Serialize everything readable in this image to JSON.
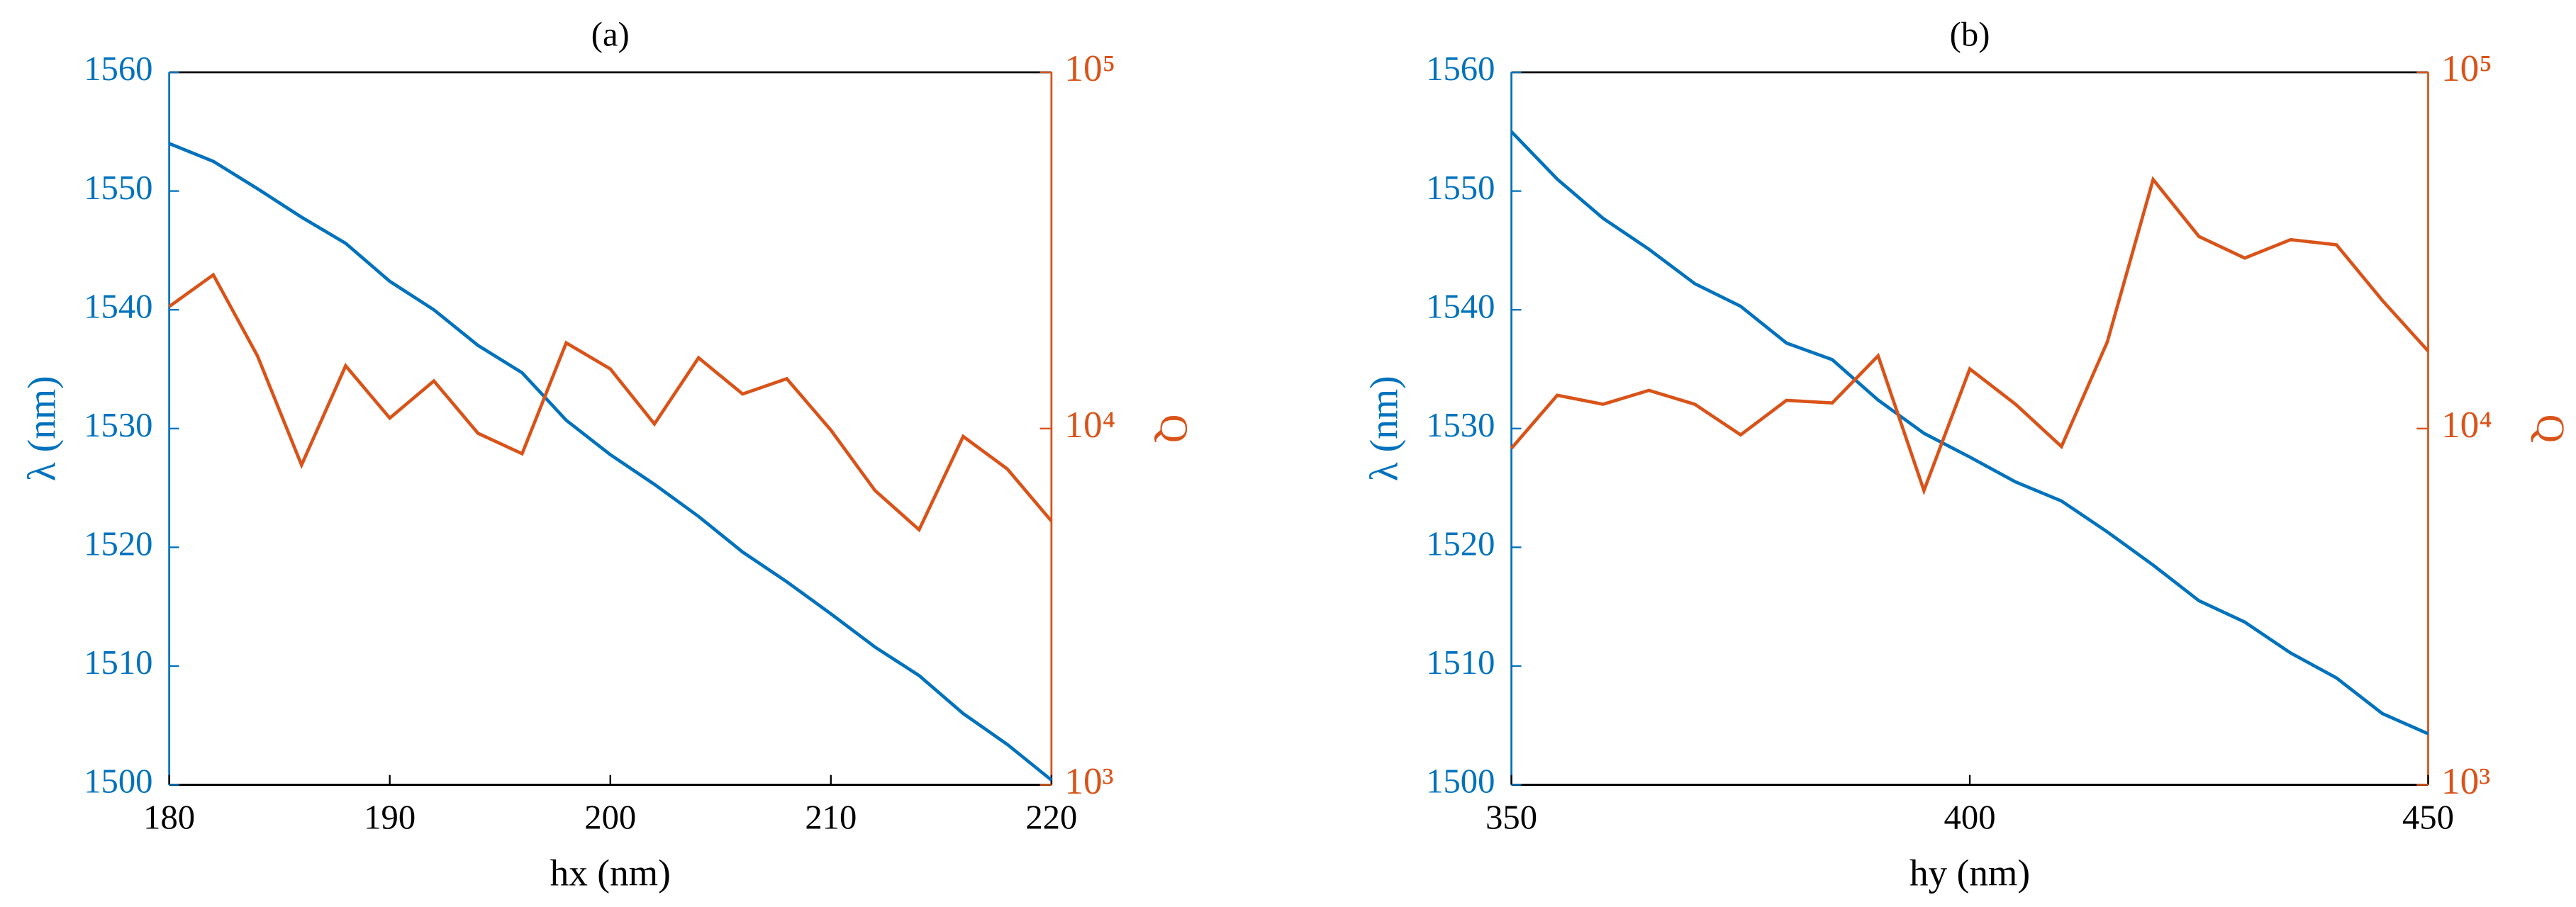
{
  "chart_data": [
    {
      "type": "line",
      "title": "(a)",
      "x_label": "hx (nm)",
      "y_label": "λ (nm)",
      "y2_label": "Q",
      "x": [
        180,
        182,
        184,
        186,
        188,
        190,
        192,
        194,
        196,
        198,
        200,
        202,
        204,
        206,
        208,
        210,
        212,
        214,
        216,
        218,
        220
      ],
      "xlim": [
        180,
        220
      ],
      "xticks": [
        180,
        190,
        200,
        210,
        220
      ],
      "ylim": [
        1500,
        1560
      ],
      "yticks": [
        1500,
        1510,
        1520,
        1530,
        1540,
        1550,
        1560
      ],
      "y2lim": [
        1000,
        100000
      ],
      "y2log": true,
      "y2ticks": [
        {
          "value": 1000,
          "label": "10³"
        },
        {
          "value": 10000,
          "label": "10⁴"
        },
        {
          "value": 100000,
          "label": "10⁵"
        }
      ],
      "series": [
        {
          "color": "#0072BD",
          "values": [
            1554,
            1552.5,
            1550.2,
            1547.8,
            1545.6,
            1542.4,
            1540,
            1537,
            1534.7,
            1530.7,
            1527.8,
            1525.3,
            1522.6,
            1519.6,
            1517.1,
            1514.4,
            1511.6,
            1509.2,
            1506,
            1503.4,
            1500.4
          ]
        },
        {
          "color": "#D95319",
          "axis": "y2",
          "values": [
            22000,
            27000,
            16000,
            7900,
            15000,
            10700,
            13600,
            9700,
            8500,
            17400,
            14700,
            10300,
            15800,
            12500,
            13800,
            9900,
            6700,
            5200,
            9500,
            7700,
            5500
          ]
        }
      ]
    },
    {
      "type": "line",
      "title": "(b)",
      "x_label": "hy (nm)",
      "y_label": "λ (nm)",
      "y2_label": "Q",
      "x": [
        350,
        355,
        360,
        365,
        370,
        375,
        380,
        385,
        390,
        395,
        400,
        405,
        410,
        415,
        420,
        425,
        430,
        435,
        440,
        445,
        450
      ],
      "xlim": [
        350,
        450
      ],
      "xticks": [
        350,
        400,
        450
      ],
      "ylim": [
        1500,
        1560
      ],
      "yticks": [
        1500,
        1510,
        1520,
        1530,
        1540,
        1550,
        1560
      ],
      "y2lim": [
        1000,
        100000
      ],
      "y2log": true,
      "y2ticks": [
        {
          "value": 1000,
          "label": "10³"
        },
        {
          "value": 10000,
          "label": "10⁴"
        },
        {
          "value": 100000,
          "label": "10⁵"
        }
      ],
      "series": [
        {
          "color": "#0072BD",
          "values": [
            1555,
            1551,
            1547.7,
            1545.1,
            1542.2,
            1540.3,
            1537.2,
            1535.8,
            1532.4,
            1529.6,
            1527.6,
            1525.5,
            1523.9,
            1521.3,
            1518.5,
            1515.5,
            1513.7,
            1511.1,
            1509,
            1506,
            1504.3
          ]
        },
        {
          "color": "#D95319",
          "axis": "y2",
          "values": [
            8800,
            12400,
            11700,
            12800,
            11700,
            9600,
            12000,
            11800,
            16000,
            6700,
            14700,
            11700,
            8900,
            17500,
            50000,
            34600,
            30100,
            33900,
            32800,
            22900,
            16500
          ]
        }
      ]
    }
  ]
}
